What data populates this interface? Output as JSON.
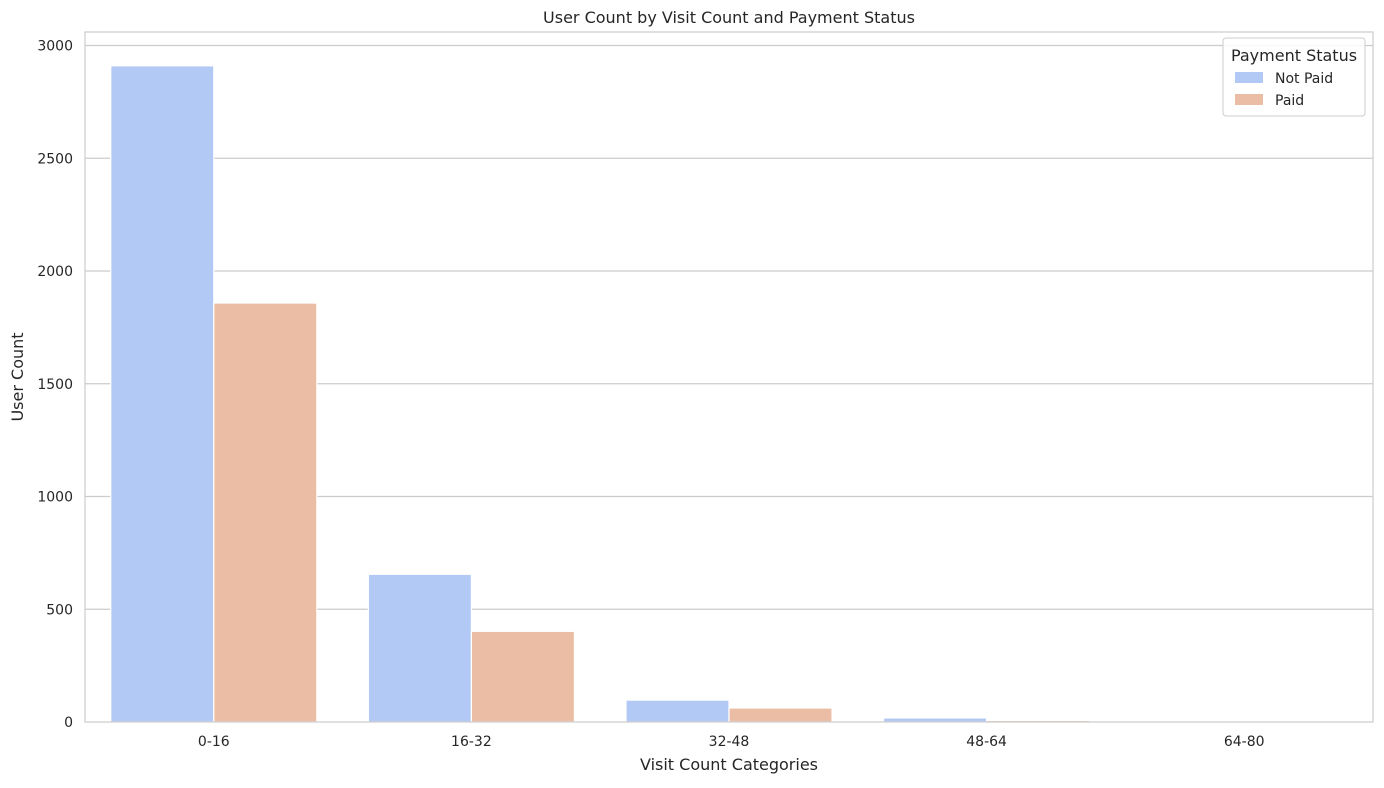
{
  "chart_data": {
    "type": "bar",
    "title": "User Count by Visit Count and Payment Status",
    "xlabel": "Visit Count Categories",
    "ylabel": "User Count",
    "categories": [
      "0-16",
      "16-32",
      "32-48",
      "48-64",
      "64-80"
    ],
    "series": [
      {
        "name": "Not Paid",
        "color": "#b3c9f5",
        "values": [
          2910,
          655,
          97,
          18,
          2
        ]
      },
      {
        "name": "Paid",
        "color": "#ecbda5",
        "values": [
          1858,
          402,
          62,
          7,
          1
        ]
      }
    ],
    "ylim": [
      0,
      3060
    ],
    "yticks": [
      0,
      500,
      1000,
      1500,
      2000,
      2500,
      3000
    ],
    "grid": true,
    "legend": {
      "title": "Payment Status",
      "placement": "top-right"
    }
  }
}
